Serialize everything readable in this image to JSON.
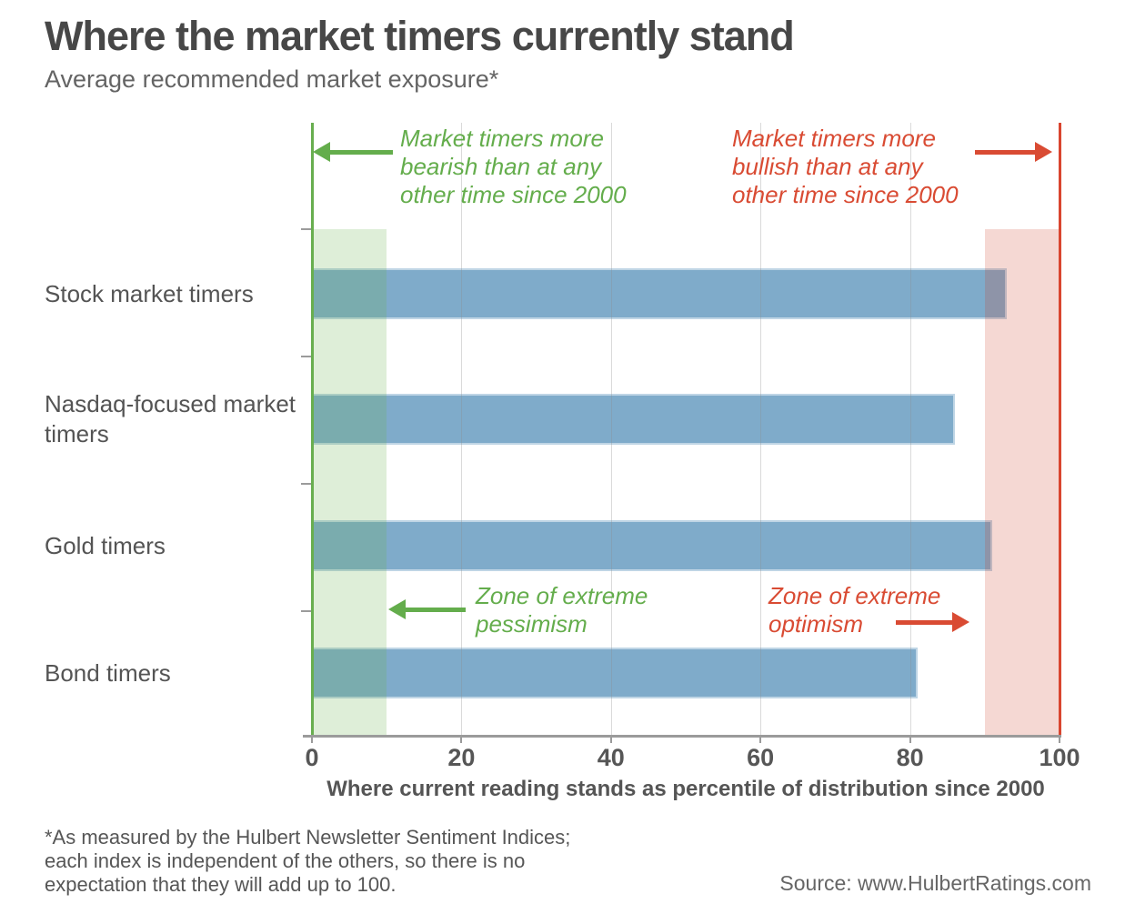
{
  "header": {
    "title": "Where the market timers currently stand",
    "subtitle": "Average recommended market exposure*"
  },
  "chart_data": {
    "type": "bar",
    "orientation": "horizontal",
    "title": "Where the market timers currently stand",
    "subtitle": "Average recommended market exposure*",
    "categories": [
      "Stock market timers",
      "Nasdaq-focused market timers",
      "Gold timers",
      "Bond timers"
    ],
    "values": [
      93,
      86,
      91,
      81
    ],
    "xlabel": "Where current reading stands as percentile of distribution since 2000",
    "ylabel": "",
    "xlim": [
      0,
      100
    ],
    "xticks": [
      0,
      20,
      40,
      60,
      80,
      100
    ],
    "grid": true,
    "bar_color": "#7fabca",
    "zones": [
      {
        "name": "zone-of-extreme-pessimism",
        "from": 0,
        "to": 10,
        "color": "#6ab04f",
        "alpha": 0.22
      },
      {
        "name": "zone-of-extreme-optimism",
        "from": 90,
        "to": 100,
        "color": "#cb3e24",
        "alpha": 0.2
      }
    ],
    "axis_lines": [
      {
        "at": 0,
        "color": "#68ae4f"
      },
      {
        "at": 100,
        "color": "#d9452f"
      }
    ]
  },
  "annotations": {
    "bearish": {
      "color": "#64ad4c",
      "lines": [
        "Market timers more",
        "bearish than at any",
        "other time since 2000"
      ]
    },
    "bullish": {
      "color": "#d94b33",
      "lines": [
        "Market timers more",
        "bullish than at any",
        "other time since 2000"
      ]
    },
    "pessimism": {
      "color": "#64ad4c",
      "lines": [
        "Zone of extreme",
        "pessimism"
      ]
    },
    "optimism": {
      "color": "#d94b33",
      "lines": [
        "Zone of extreme",
        "optimism"
      ]
    }
  },
  "footer": {
    "footnote_lines": [
      "*As measured by the Hulbert Newsletter Sentiment Indices;",
      "each index is independent of the others, so there is no",
      "expectation that they will add up to 100."
    ],
    "source": "Source: www.HulbertRatings.com"
  }
}
